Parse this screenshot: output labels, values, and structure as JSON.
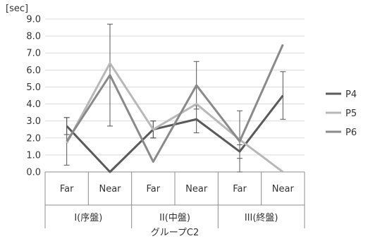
{
  "chart_data": {
    "type": "line",
    "y_unit_label": "[sec]",
    "xlabel": "グループC2",
    "ylabel": "",
    "ylim": [
      0,
      9
    ],
    "ytick_step": 1,
    "ytick_labels": [
      "0.0",
      "1.0",
      "2.0",
      "3.0",
      "4.0",
      "5.0",
      "6.0",
      "7.0",
      "8.0",
      "9.0"
    ],
    "grid": true,
    "legend_position": "right",
    "categories": [
      "Far",
      "Near",
      "Far",
      "Near",
      "Far",
      "Near"
    ],
    "groups": [
      {
        "label": "I(序盤)",
        "span": 2
      },
      {
        "label": "II(中盤)",
        "span": 2
      },
      {
        "label": "III(終盤)",
        "span": 2
      }
    ],
    "series": [
      {
        "name": "P4",
        "color": "#5a5a5a",
        "values": [
          2.7,
          0.0,
          2.5,
          3.1,
          1.2,
          4.5
        ],
        "errors": [
          0.5,
          null,
          0.5,
          0.8,
          0.4,
          1.4
        ]
      },
      {
        "name": "P5",
        "color": "#b8b8b8",
        "values": [
          1.7,
          6.4,
          2.5,
          4.0,
          1.9,
          0.0
        ],
        "errors": [
          null,
          null,
          0.5,
          null,
          null,
          null
        ]
      },
      {
        "name": "P6",
        "color": "#8a8a8a",
        "values": [
          1.8,
          5.7,
          0.6,
          5.1,
          1.8,
          7.5
        ],
        "errors": [
          1.4,
          3.0,
          null,
          1.4,
          1.8,
          null
        ]
      }
    ]
  }
}
